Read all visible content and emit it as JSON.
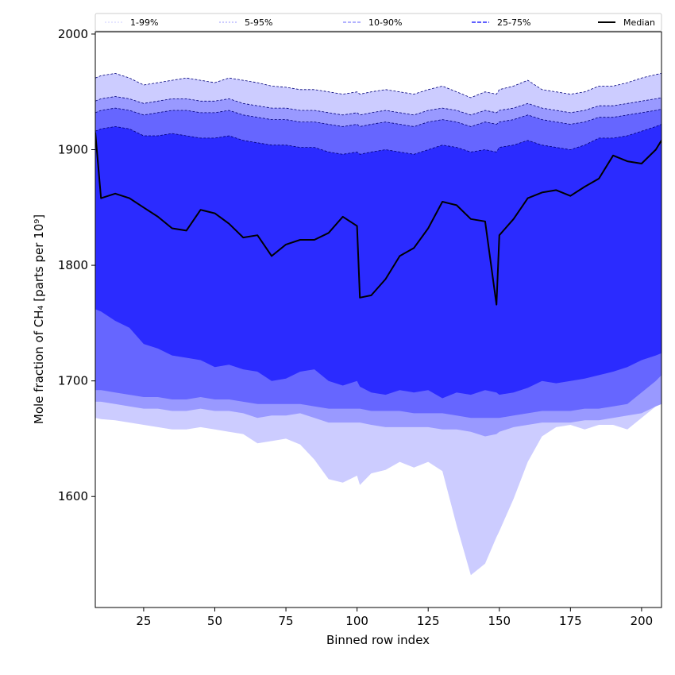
{
  "chart_data": {
    "type": "area",
    "xlabel": "Binned row index",
    "ylabel": "Mole fraction of CH₄ [parts per 10⁹]",
    "xlim": [
      8,
      207
    ],
    "ylim": [
      1504,
      2002
    ],
    "xticks": [
      25,
      50,
      75,
      100,
      125,
      150,
      175,
      200
    ],
    "yticks": [
      1600,
      1700,
      1800,
      1900,
      2000
    ],
    "grid": false,
    "legend": {
      "placement": "top, full width",
      "entries": [
        "1-99%",
        "5-95%",
        "10-90%",
        "25-75%",
        "Median"
      ]
    },
    "x": [
      8,
      10,
      15,
      20,
      25,
      30,
      35,
      40,
      45,
      50,
      55,
      60,
      65,
      70,
      75,
      80,
      85,
      90,
      95,
      100,
      101,
      105,
      110,
      115,
      120,
      125,
      130,
      135,
      140,
      145,
      149,
      150,
      155,
      160,
      165,
      170,
      175,
      180,
      185,
      190,
      195,
      200,
      205,
      207
    ],
    "series": [
      {
        "name": "Median",
        "values": [
          1915,
          1858,
          1862,
          1858,
          1850,
          1842,
          1832,
          1830,
          1848,
          1845,
          1836,
          1824,
          1826,
          1808,
          1818,
          1822,
          1822,
          1828,
          1842,
          1834,
          1772,
          1774,
          1788,
          1808,
          1815,
          1832,
          1855,
          1852,
          1840,
          1838,
          1766,
          1826,
          1840,
          1858,
          1863,
          1865,
          1860,
          1868,
          1875,
          1895,
          1890,
          1888,
          1900,
          1908
        ]
      },
      {
        "name": "1-99%",
        "color": "#ccccff",
        "lower": [
          1668,
          1667,
          1666,
          1664,
          1662,
          1660,
          1658,
          1658,
          1660,
          1658,
          1656,
          1654,
          1646,
          1648,
          1650,
          1645,
          1632,
          1615,
          1612,
          1618,
          1610,
          1620,
          1623,
          1630,
          1625,
          1630,
          1622,
          1575,
          1532,
          1542,
          1565,
          1570,
          1598,
          1630,
          1652,
          1660,
          1662,
          1658,
          1662,
          1662,
          1658,
          1668,
          1678,
          1680
        ],
        "upper": [
          1962,
          1964,
          1966,
          1962,
          1956,
          1958,
          1960,
          1962,
          1960,
          1958,
          1962,
          1960,
          1958,
          1955,
          1954,
          1952,
          1952,
          1950,
          1948,
          1950,
          1948,
          1950,
          1952,
          1950,
          1948,
          1952,
          1955,
          1950,
          1945,
          1950,
          1948,
          1952,
          1955,
          1960,
          1952,
          1950,
          1948,
          1950,
          1955,
          1955,
          1958,
          1962,
          1965,
          1966
        ]
      },
      {
        "name": "5-95%",
        "color": "#9999ff",
        "lower": [
          1682,
          1682,
          1680,
          1678,
          1676,
          1676,
          1674,
          1674,
          1676,
          1674,
          1674,
          1672,
          1668,
          1670,
          1670,
          1672,
          1668,
          1664,
          1664,
          1664,
          1664,
          1662,
          1660,
          1660,
          1660,
          1660,
          1658,
          1658,
          1656,
          1652,
          1654,
          1656,
          1660,
          1662,
          1664,
          1664,
          1664,
          1666,
          1666,
          1668,
          1670,
          1672,
          1678,
          1680
        ],
        "upper": [
          1942,
          1944,
          1946,
          1944,
          1940,
          1942,
          1944,
          1944,
          1942,
          1942,
          1944,
          1940,
          1938,
          1936,
          1936,
          1934,
          1934,
          1932,
          1930,
          1932,
          1930,
          1932,
          1934,
          1932,
          1930,
          1934,
          1936,
          1934,
          1930,
          1934,
          1932,
          1934,
          1936,
          1940,
          1936,
          1934,
          1932,
          1934,
          1938,
          1938,
          1940,
          1942,
          1944,
          1945
        ]
      },
      {
        "name": "10-90%",
        "color": "#6666ff",
        "lower": [
          1692,
          1692,
          1690,
          1688,
          1686,
          1686,
          1684,
          1684,
          1686,
          1684,
          1684,
          1682,
          1680,
          1680,
          1680,
          1680,
          1678,
          1676,
          1676,
          1676,
          1676,
          1674,
          1674,
          1674,
          1672,
          1672,
          1672,
          1670,
          1668,
          1668,
          1668,
          1668,
          1670,
          1672,
          1674,
          1674,
          1674,
          1676,
          1676,
          1678,
          1680,
          1690,
          1700,
          1705
        ],
        "upper": [
          1932,
          1934,
          1936,
          1934,
          1930,
          1932,
          1934,
          1934,
          1932,
          1932,
          1934,
          1930,
          1928,
          1926,
          1926,
          1924,
          1924,
          1922,
          1920,
          1922,
          1920,
          1922,
          1924,
          1922,
          1920,
          1924,
          1926,
          1924,
          1920,
          1924,
          1922,
          1924,
          1926,
          1930,
          1926,
          1924,
          1922,
          1924,
          1928,
          1928,
          1930,
          1932,
          1934,
          1935
        ]
      },
      {
        "name": "25-75%",
        "color": "#2b2bff",
        "lower": [
          1762,
          1760,
          1752,
          1746,
          1732,
          1728,
          1722,
          1720,
          1718,
          1712,
          1714,
          1710,
          1708,
          1700,
          1702,
          1708,
          1710,
          1700,
          1696,
          1700,
          1695,
          1690,
          1688,
          1692,
          1690,
          1692,
          1685,
          1690,
          1688,
          1692,
          1690,
          1688,
          1690,
          1694,
          1700,
          1698,
          1700,
          1702,
          1705,
          1708,
          1712,
          1718,
          1722,
          1724
        ],
        "upper": [
          1916,
          1918,
          1920,
          1918,
          1912,
          1912,
          1914,
          1912,
          1910,
          1910,
          1912,
          1908,
          1906,
          1904,
          1904,
          1902,
          1902,
          1898,
          1896,
          1898,
          1896,
          1898,
          1900,
          1898,
          1896,
          1900,
          1904,
          1902,
          1898,
          1900,
          1898,
          1902,
          1904,
          1908,
          1904,
          1902,
          1900,
          1904,
          1910,
          1910,
          1912,
          1916,
          1920,
          1922
        ]
      }
    ]
  }
}
